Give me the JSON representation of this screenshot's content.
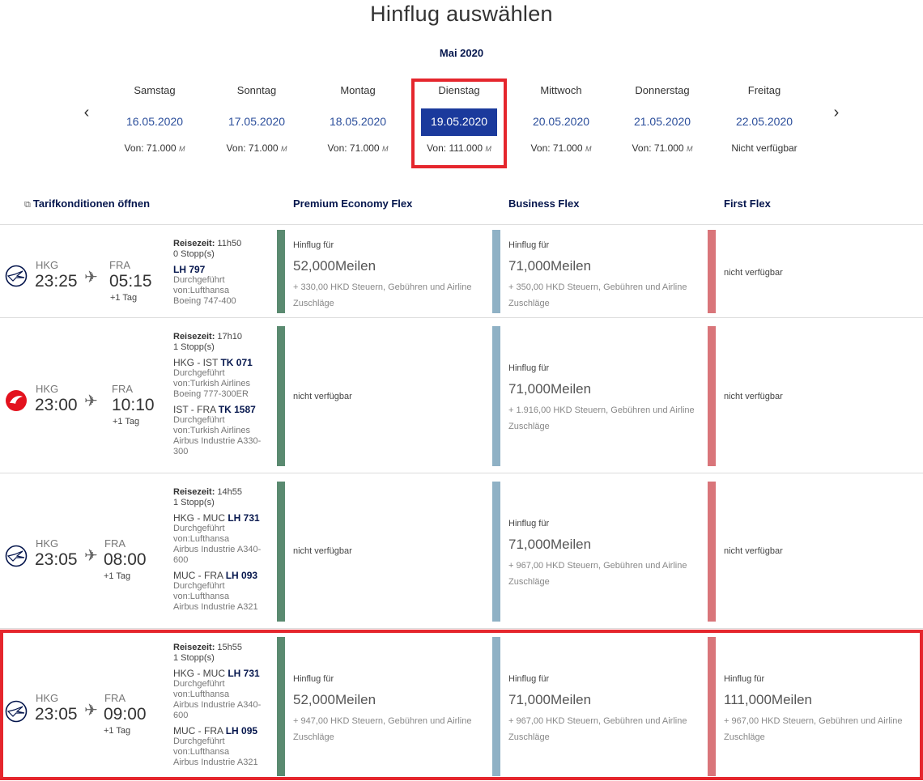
{
  "page_title": "Hinflug auswählen",
  "month": "Mai 2020",
  "days": [
    {
      "name": "Samstag",
      "date": "16.05.2020",
      "price": "Von: 71.000",
      "unit": "M"
    },
    {
      "name": "Sonntag",
      "date": "17.05.2020",
      "price": "Von: 71.000",
      "unit": "M"
    },
    {
      "name": "Montag",
      "date": "18.05.2020",
      "price": "Von: 71.000",
      "unit": "M"
    },
    {
      "name": "Dienstag",
      "date": "19.05.2020",
      "price": "Von: 111.000",
      "unit": "M"
    },
    {
      "name": "Mittwoch",
      "date": "20.05.2020",
      "price": "Von: 71.000",
      "unit": "M"
    },
    {
      "name": "Donnerstag",
      "date": "21.05.2020",
      "price": "Von: 71.000",
      "unit": "M"
    },
    {
      "name": "Freitag",
      "date": "22.05.2020",
      "price": "Nicht verfügbar",
      "unit": ""
    }
  ],
  "nav": {
    "prev": "‹",
    "next": "›"
  },
  "headers": {
    "conditions": "Tarifkonditionen öffnen",
    "premium": "Premium Economy Flex",
    "business": "Business Flex",
    "first": "First Flex"
  },
  "colors": {
    "premium": "#5a8a70",
    "business": "#8fb1c5",
    "first": "#d9757a",
    "highlight": "#e5262d",
    "selected": "#1b3a9c"
  },
  "flights": [
    {
      "airline_icon": "lufthansa-crane-icon",
      "from": "HKG",
      "dep": "23:25",
      "to": "FRA",
      "arr": "05:15",
      "plus": "+1 Tag",
      "details": {
        "label": "Reisezeit:",
        "duration": "11h50",
        "stops": "0 Stopp(s)",
        "segments": [
          {
            "route": "",
            "flight": "LH 797",
            "operator": "Durchgeführt von:Lufthansa",
            "aircraft": "Boeing 747-400"
          }
        ]
      },
      "premium": {
        "available": true,
        "label": "Hinflug für",
        "miles": "52,000Meilen",
        "tax": "+ 330,00 HKD Steuern, Gebühren und Airline Zuschläge"
      },
      "business": {
        "available": true,
        "label": "Hinflug für",
        "miles": "71,000Meilen",
        "tax": "+ 350,00 HKD Steuern, Gebühren und Airline Zuschläge"
      },
      "first": {
        "available": false,
        "label": "nicht verfügbar"
      }
    },
    {
      "airline_icon": "turkish-airlines-icon",
      "from": "HKG",
      "dep": "23:00",
      "to": "FRA",
      "arr": "10:10",
      "plus": "+1 Tag",
      "details": {
        "label": "Reisezeit:",
        "duration": "17h10",
        "stops": "1 Stopp(s)",
        "segments": [
          {
            "route": "HKG - IST",
            "flight": "TK 071",
            "operator": "Durchgeführt von:Turkish Airlines",
            "aircraft": "Boeing 777-300ER"
          },
          {
            "route": "IST - FRA",
            "flight": "TK 1587",
            "operator": "Durchgeführt von:Turkish Airlines",
            "aircraft": "Airbus Industrie A330-300"
          }
        ]
      },
      "premium": {
        "available": false,
        "label": "nicht verfügbar"
      },
      "business": {
        "available": true,
        "label": "Hinflug für",
        "miles": "71,000Meilen",
        "tax": "+ 1.916,00 HKD Steuern, Gebühren und Airline Zuschläge"
      },
      "first": {
        "available": false,
        "label": "nicht verfügbar"
      }
    },
    {
      "airline_icon": "lufthansa-crane-icon",
      "from": "HKG",
      "dep": "23:05",
      "to": "FRA",
      "arr": "08:00",
      "plus": "+1 Tag",
      "details": {
        "label": "Reisezeit:",
        "duration": "14h55",
        "stops": "1 Stopp(s)",
        "segments": [
          {
            "route": "HKG - MUC",
            "flight": "LH 731",
            "operator": "Durchgeführt von:Lufthansa",
            "aircraft": "Airbus Industrie A340-600"
          },
          {
            "route": "MUC - FRA",
            "flight": "LH 093",
            "operator": "Durchgeführt von:Lufthansa",
            "aircraft": "Airbus Industrie A321"
          }
        ]
      },
      "premium": {
        "available": false,
        "label": "nicht verfügbar"
      },
      "business": {
        "available": true,
        "label": "Hinflug für",
        "miles": "71,000Meilen",
        "tax": "+ 967,00 HKD Steuern, Gebühren und Airline Zuschläge"
      },
      "first": {
        "available": false,
        "label": "nicht verfügbar"
      }
    },
    {
      "airline_icon": "lufthansa-crane-icon",
      "from": "HKG",
      "dep": "23:05",
      "to": "FRA",
      "arr": "09:00",
      "plus": "+1 Tag",
      "details": {
        "label": "Reisezeit:",
        "duration": "15h55",
        "stops": "1 Stopp(s)",
        "segments": [
          {
            "route": "HKG - MUC",
            "flight": "LH 731",
            "operator": "Durchgeführt von:Lufthansa",
            "aircraft": "Airbus Industrie A340-600"
          },
          {
            "route": "MUC - FRA",
            "flight": "LH 095",
            "operator": "Durchgeführt von:Lufthansa",
            "aircraft": "Airbus Industrie A321"
          }
        ]
      },
      "premium": {
        "available": true,
        "label": "Hinflug für",
        "miles": "52,000Meilen",
        "tax": "+ 947,00 HKD Steuern, Gebühren und Airline Zuschläge"
      },
      "business": {
        "available": true,
        "label": "Hinflug für",
        "miles": "71,000Meilen",
        "tax": "+ 967,00 HKD Steuern, Gebühren und Airline Zuschläge"
      },
      "first": {
        "available": true,
        "label": "Hinflug für",
        "miles": "111,000Meilen",
        "tax": "+ 967,00 HKD Steuern, Gebühren und Airline Zuschläge"
      }
    }
  ]
}
